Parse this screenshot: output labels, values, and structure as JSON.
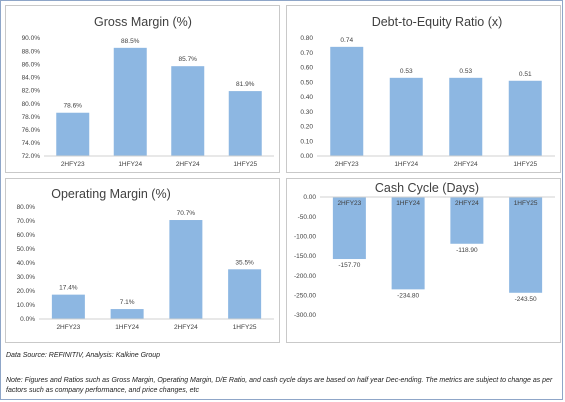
{
  "chart_data": [
    {
      "type": "bar",
      "title": "Gross Margin (%)",
      "categories": [
        "2HFY23",
        "1HFY24",
        "2HFY24",
        "1HFY25"
      ],
      "values": [
        78.6,
        88.5,
        85.7,
        81.9
      ],
      "value_labels": [
        "78.6%",
        "88.5%",
        "85.7%",
        "81.9%"
      ],
      "yticks": [
        "72.0%",
        "74.0%",
        "76.0%",
        "78.0%",
        "80.0%",
        "82.0%",
        "84.0%",
        "86.0%",
        "88.0%",
        "90.0%"
      ],
      "ylim": [
        72,
        90
      ],
      "grid": false
    },
    {
      "type": "bar",
      "title": "Debt-to-Equity Ratio (x)",
      "categories": [
        "2HFY23",
        "1HFY24",
        "2HFY24",
        "1HFY25"
      ],
      "values": [
        0.74,
        0.53,
        0.53,
        0.51
      ],
      "value_labels": [
        "0.74",
        "0.53",
        "0.53",
        "0.51"
      ],
      "yticks": [
        "0.00",
        "0.10",
        "0.20",
        "0.30",
        "0.40",
        "0.50",
        "0.60",
        "0.70",
        "0.80"
      ],
      "ylim": [
        0,
        0.8
      ],
      "grid": false
    },
    {
      "type": "bar",
      "title": "Operating Margin (%)",
      "categories": [
        "2HFY23",
        "1HFY24",
        "2HFY24",
        "1HFY25"
      ],
      "values": [
        17.4,
        7.1,
        70.7,
        35.5
      ],
      "value_labels": [
        "17.4%",
        "7.1%",
        "70.7%",
        "35.5%"
      ],
      "yticks": [
        "0.0%",
        "10.0%",
        "20.0%",
        "30.0%",
        "40.0%",
        "50.0%",
        "60.0%",
        "70.0%",
        "80.0%"
      ],
      "ylim": [
        0,
        80
      ],
      "grid": false
    },
    {
      "type": "bar",
      "title": "Cash Cycle (Days)",
      "categories": [
        "2HFY23",
        "1HFY24",
        "2HFY24",
        "1HFY25"
      ],
      "values": [
        -157.7,
        -234.8,
        -118.9,
        -243.5
      ],
      "value_labels": [
        "-157.70",
        "-234.80",
        "-118.90",
        "-243.50"
      ],
      "yticks": [
        "-300.00",
        "-250.00",
        "-200.00",
        "-150.00",
        "-100.00",
        "-50.00",
        "0.00"
      ],
      "ylim": [
        -300,
        0
      ],
      "category_labels_position": "top",
      "grid": false
    }
  ],
  "source": "Data Source: REFINITIV, Analysis: Kalkine Group",
  "note": "Note: Figures and Ratios such as Gross Margin, Operating Margin, D/E Ratio, and cash cycle days are based on half year Dec-ending. The metrics are subject to change as per factors such as company performance, and price changes, etc",
  "colors": {
    "bar": "#8db7e2",
    "text": "#404040"
  }
}
